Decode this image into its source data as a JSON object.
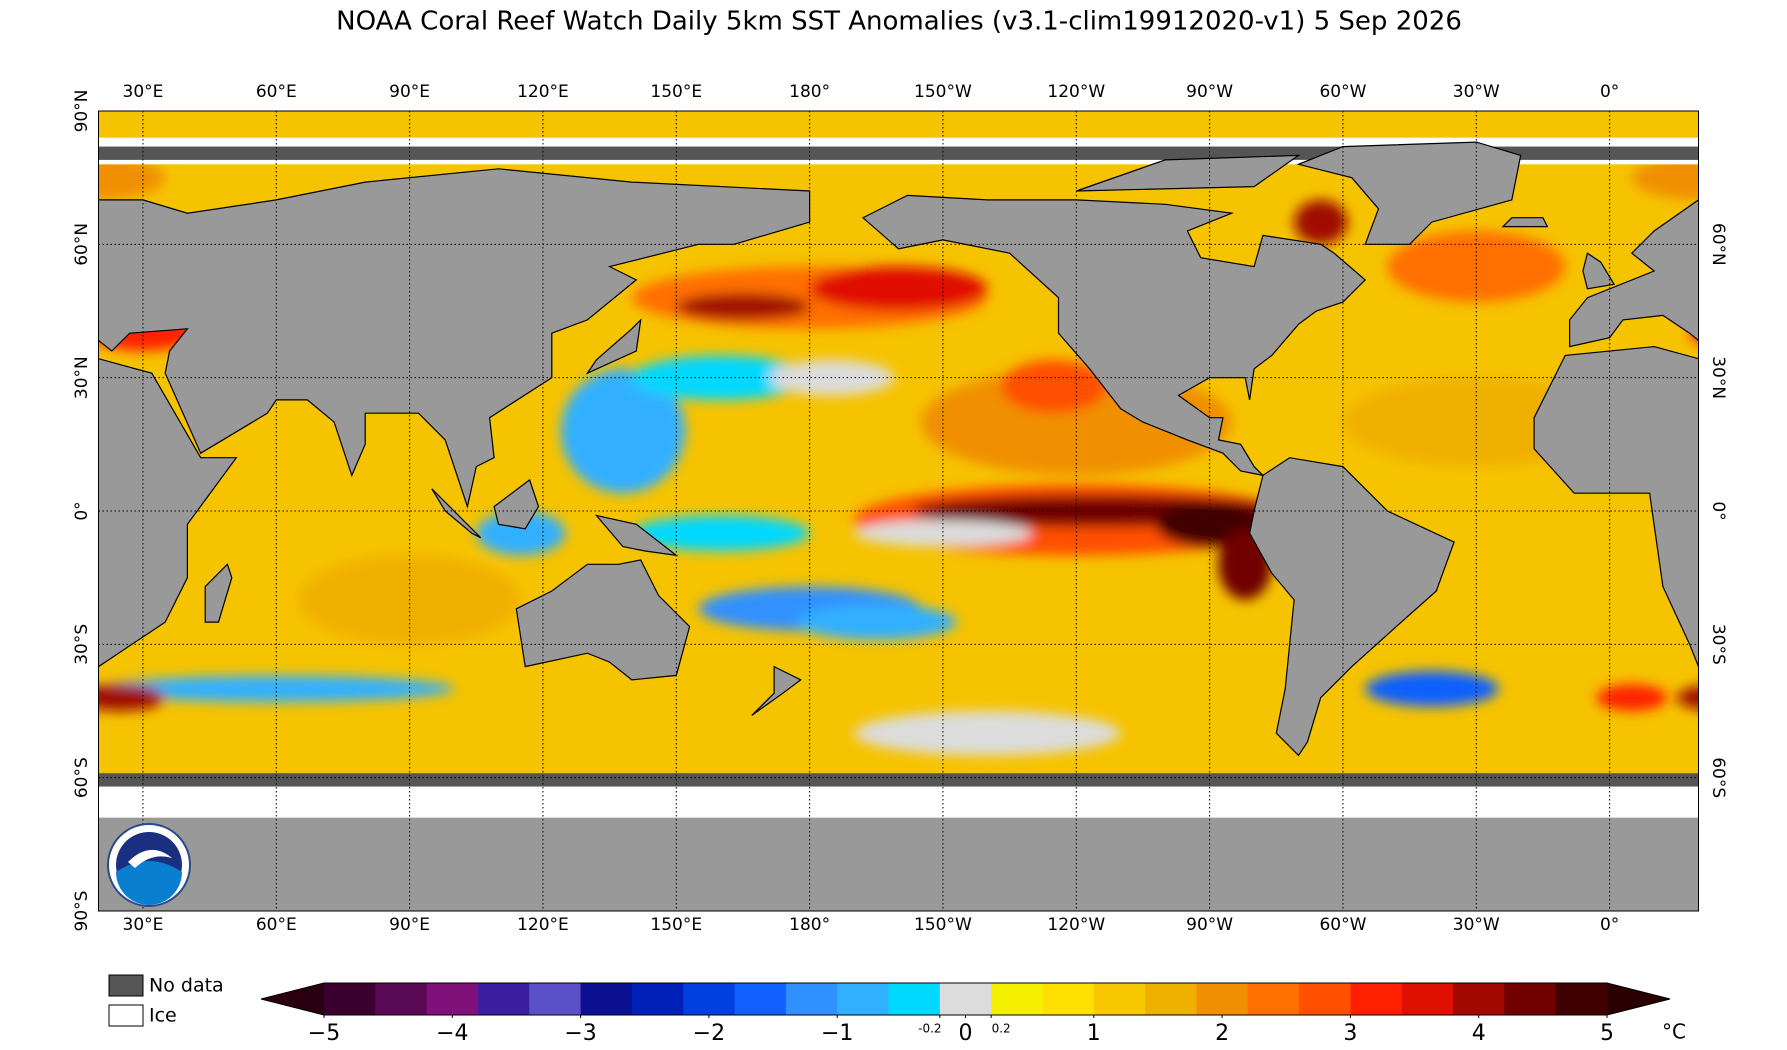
{
  "title": "NOAA Coral Reef Watch Daily 5km SST Anomalies  (v3.1-clim19912020-v1)   5 Sep 2026",
  "lon_labels": [
    {
      "value": 30,
      "label": "30°E"
    },
    {
      "value": 60,
      "label": "60°E"
    },
    {
      "value": 90,
      "label": "90°E"
    },
    {
      "value": 120,
      "label": "120°E"
    },
    {
      "value": 150,
      "label": "150°E"
    },
    {
      "value": 180,
      "label": "180°"
    },
    {
      "value": -150,
      "label": "150°W"
    },
    {
      "value": -120,
      "label": "120°W"
    },
    {
      "value": -90,
      "label": "90°W"
    },
    {
      "value": -60,
      "label": "60°W"
    },
    {
      "value": -30,
      "label": "30°W"
    },
    {
      "value": 0,
      "label": "0°"
    }
  ],
  "lat_labels_left": [
    {
      "value": 90,
      "label": "90°N"
    },
    {
      "value": 60,
      "label": "60°N"
    },
    {
      "value": 30,
      "label": "30°N"
    },
    {
      "value": 0,
      "label": "0°"
    },
    {
      "value": -30,
      "label": "30°S"
    },
    {
      "value": -60,
      "label": "60°S"
    },
    {
      "value": -90,
      "label": "90°S"
    }
  ],
  "lat_labels_right": [
    {
      "value": 60,
      "label": "60°N"
    },
    {
      "value": 30,
      "label": "30°N"
    },
    {
      "value": 0,
      "label": "0°"
    },
    {
      "value": -30,
      "label": "30°S"
    },
    {
      "value": -60,
      "label": "60°S"
    }
  ],
  "legend": [
    "No data",
    "Ice"
  ],
  "colorbar": {
    "min": -5,
    "max": 5,
    "unit": "°C",
    "colors": [
      "#3a0030",
      "#5a0a55",
      "#80107a",
      "#3a20a0",
      "#5a50c8",
      "#0a1090",
      "#0020b8",
      "#0040e0",
      "#1060ff",
      "#3090ff",
      "#30b0ff",
      "#00d8ff",
      "#dcdcdc",
      "#f4f000",
      "#ffe000",
      "#f8c800",
      "#f0b000",
      "#f09000",
      "#ff7000",
      "#ff5000",
      "#ff2000",
      "#e01000",
      "#a00800",
      "#700000",
      "#400000"
    ],
    "extend_colors": [
      "#2a0010",
      "#2a0000"
    ],
    "ticks": [
      {
        "value": -5,
        "label": "−5"
      },
      {
        "value": -4,
        "label": "−4"
      },
      {
        "value": -3,
        "label": "−3"
      },
      {
        "value": -2,
        "label": "−2"
      },
      {
        "value": -1,
        "label": "−1"
      },
      -0.2,
      0,
      0.2,
      1,
      2,
      3,
      4,
      5
    ]
  }
}
